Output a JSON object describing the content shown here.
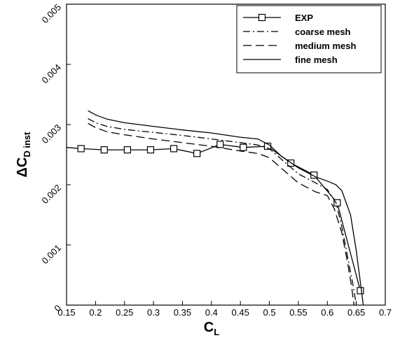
{
  "chart_data": {
    "type": "line",
    "xlabel": {
      "main": "C",
      "sub": "L"
    },
    "ylabel": {
      "prefix": "Δ",
      "main": "C",
      "sub": "D inst"
    },
    "xlim": [
      0.15,
      0.7
    ],
    "ylim": [
      0,
      0.005
    ],
    "grid": false,
    "legend_position": "top-right",
    "x_ticks": [
      {
        "v": 0.15,
        "label": "0.15"
      },
      {
        "v": 0.2,
        "label": "0.2"
      },
      {
        "v": 0.25,
        "label": "0.25"
      },
      {
        "v": 0.3,
        "label": "0.3"
      },
      {
        "v": 0.35,
        "label": "0.35"
      },
      {
        "v": 0.4,
        "label": "0.4"
      },
      {
        "v": 0.45,
        "label": "0.45"
      },
      {
        "v": 0.5,
        "label": "0.5"
      },
      {
        "v": 0.55,
        "label": "0.55"
      },
      {
        "v": 0.6,
        "label": "0.6"
      },
      {
        "v": 0.65,
        "label": "0.65"
      },
      {
        "v": 0.7,
        "label": "0.7"
      }
    ],
    "y_ticks": [
      {
        "v": 0,
        "label": "0"
      },
      {
        "v": 0.001,
        "label": "0.001"
      },
      {
        "v": 0.002,
        "label": "0.002"
      },
      {
        "v": 0.003,
        "label": "0.003"
      },
      {
        "v": 0.004,
        "label": "0.004"
      },
      {
        "v": 0.005,
        "label": "0.005"
      }
    ],
    "series": [
      {
        "name": "EXP",
        "style": "solid-marker",
        "color": "#000000",
        "x": [
          0.15,
          0.175,
          0.215,
          0.255,
          0.295,
          0.335,
          0.375,
          0.415,
          0.455,
          0.497,
          0.537,
          0.577,
          0.617,
          0.657
        ],
        "y": [
          0.00262,
          0.0026,
          0.00258,
          0.00258,
          0.00258,
          0.0026,
          0.00252,
          0.00267,
          0.00262,
          0.00264,
          0.00236,
          0.00216,
          0.0017,
          0.00024
        ],
        "markers": [
          false,
          true,
          true,
          true,
          true,
          true,
          true,
          true,
          true,
          true,
          true,
          true,
          true,
          true
        ]
      },
      {
        "name": "coarse mesh",
        "style": "dashdot",
        "color": "#000000",
        "x": [
          0.187,
          0.2,
          0.22,
          0.25,
          0.3,
          0.35,
          0.4,
          0.45,
          0.48,
          0.5,
          0.52,
          0.55,
          0.58,
          0.6,
          0.615,
          0.625,
          0.635,
          0.645,
          0.65
        ],
        "y": [
          0.0031,
          0.00303,
          0.00297,
          0.00292,
          0.00287,
          0.00282,
          0.00276,
          0.0027,
          0.00266,
          0.0026,
          0.00243,
          0.00218,
          0.00203,
          0.00192,
          0.0017,
          0.0013,
          0.0008,
          0.0003,
          0.0
        ]
      },
      {
        "name": "medium mesh",
        "style": "dashed",
        "color": "#000000",
        "x": [
          0.187,
          0.2,
          0.22,
          0.25,
          0.3,
          0.35,
          0.4,
          0.45,
          0.48,
          0.5,
          0.52,
          0.55,
          0.58,
          0.6,
          0.612,
          0.625,
          0.635,
          0.642,
          0.646
        ],
        "y": [
          0.00302,
          0.00295,
          0.00288,
          0.00283,
          0.00276,
          0.0027,
          0.00264,
          0.00256,
          0.00252,
          0.00245,
          0.00228,
          0.00203,
          0.00188,
          0.00182,
          0.0016,
          0.0012,
          0.0007,
          0.0003,
          0.0
        ]
      },
      {
        "name": "fine mesh",
        "style": "solid",
        "color": "#000000",
        "x": [
          0.187,
          0.2,
          0.22,
          0.25,
          0.3,
          0.35,
          0.4,
          0.45,
          0.48,
          0.5,
          0.52,
          0.55,
          0.58,
          0.6,
          0.615,
          0.625,
          0.64,
          0.65,
          0.658,
          0.662
        ],
        "y": [
          0.00323,
          0.00316,
          0.00309,
          0.00303,
          0.00297,
          0.00291,
          0.00286,
          0.00279,
          0.00276,
          0.00266,
          0.00248,
          0.00228,
          0.00213,
          0.00206,
          0.002,
          0.0019,
          0.0015,
          0.0009,
          0.0003,
          0.0
        ]
      }
    ]
  }
}
